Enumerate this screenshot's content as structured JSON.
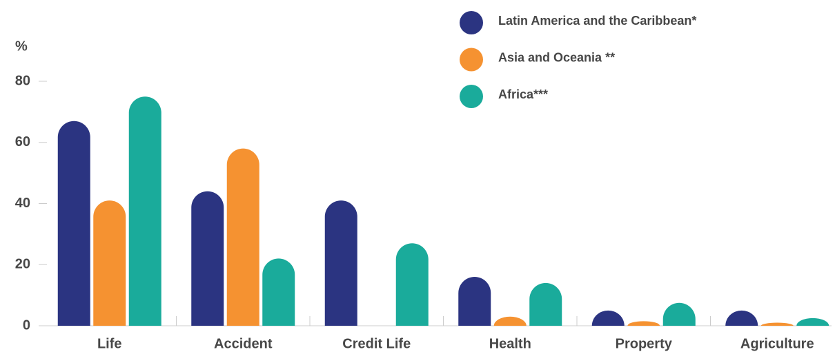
{
  "chart_data": {
    "type": "bar",
    "y_label": "%",
    "categories": [
      "Life",
      "Accident",
      "Credit Life",
      "Health",
      "Property",
      "Agriculture"
    ],
    "series": [
      {
        "name": "Latin America and the Caribbean*",
        "color": "#2b3481",
        "values": [
          67,
          44,
          41,
          16,
          5,
          5
        ]
      },
      {
        "name": "Asia and Oceania **",
        "color": "#f59231",
        "values": [
          41,
          58,
          0,
          3,
          1.5,
          1
        ]
      },
      {
        "name": "Africa***",
        "color": "#1aab9b",
        "values": [
          75,
          22,
          27,
          14,
          7.5,
          2.5
        ]
      }
    ],
    "ylim": [
      0,
      80
    ],
    "yticks": [
      0,
      20,
      40,
      60,
      80
    ],
    "grid": false,
    "legend": "top-right"
  }
}
